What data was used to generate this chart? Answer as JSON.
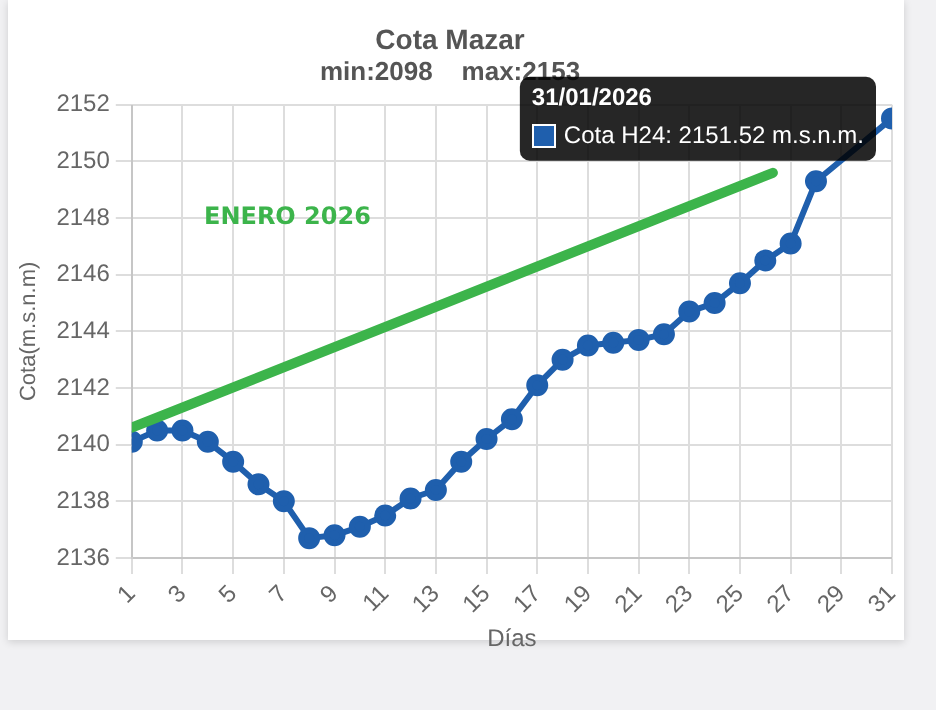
{
  "chart_data": {
    "type": "line",
    "title": "Cota Mazar",
    "subtitle": "min:2098    max:2153",
    "xlabel": "Días",
    "ylabel": "Cota(m.s.n.m)",
    "x": [
      1,
      2,
      3,
      4,
      5,
      6,
      7,
      8,
      9,
      10,
      11,
      12,
      13,
      14,
      15,
      16,
      17,
      18,
      19,
      20,
      21,
      22,
      23,
      24,
      25,
      26,
      27,
      28,
      29,
      30,
      31
    ],
    "xlim": [
      1,
      31
    ],
    "xticks": [
      1,
      3,
      5,
      7,
      9,
      11,
      13,
      15,
      17,
      19,
      21,
      23,
      25,
      27,
      29,
      31
    ],
    "ylim": [
      2136,
      2152
    ],
    "yticks": [
      2136,
      2138,
      2140,
      2142,
      2144,
      2146,
      2148,
      2150,
      2152
    ],
    "series": [
      {
        "color": "#1f5fad",
        "marker": "circle",
        "values": [
          2140.1,
          2140.5,
          2140.5,
          2140.1,
          2139.4,
          2138.6,
          2138.0,
          2136.7,
          2136.8,
          2137.1,
          2137.5,
          2138.1,
          2138.4,
          2139.4,
          2140.2,
          2140.9,
          2142.1,
          2143.0,
          2143.5,
          2143.6,
          2143.7,
          2143.9,
          2144.7,
          2145.0,
          2145.7,
          2146.5,
          2147.1,
          2149.3,
          null,
          null,
          2151.52
        ]
      },
      {
        "type": "line",
        "color": "#3cb44b",
        "marker": "none",
        "x": [
          1,
          26.3
        ],
        "values": [
          2140.6,
          2149.6
        ]
      }
    ],
    "annotations": [
      "ENERO 2026",
      "31/01/2026",
      "Cota H24: 2151.52 m.s.n.m."
    ],
    "grid": true,
    "legend": false
  }
}
